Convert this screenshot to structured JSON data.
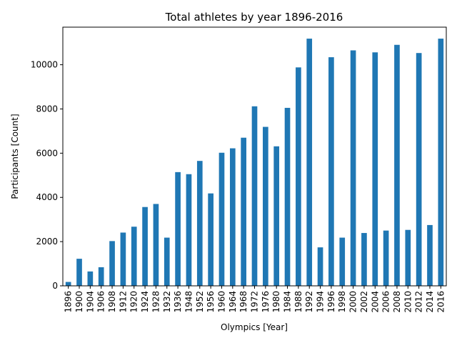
{
  "chart_data": {
    "type": "bar",
    "title": "Total athletes by year 1896-2016",
    "xlabel": "Olympics [Year]",
    "ylabel": "Participants [Count]",
    "categories": [
      "1896",
      "1900",
      "1904",
      "1906",
      "1908",
      "1912",
      "1920",
      "1924",
      "1928",
      "1932",
      "1936",
      "1948",
      "1952",
      "1956",
      "1960",
      "1964",
      "1968",
      "1972",
      "1976",
      "1980",
      "1984",
      "1988",
      "1992",
      "1994",
      "1996",
      "1998",
      "2000",
      "2002",
      "2004",
      "2006",
      "2008",
      "2010",
      "2012",
      "2014",
      "2016"
    ],
    "values": [
      176,
      1224,
      650,
      841,
      2024,
      2409,
      2675,
      3565,
      3703,
      2180,
      5143,
      5050,
      5650,
      4180,
      6020,
      6220,
      6700,
      8120,
      7190,
      6310,
      8050,
      9880,
      11180,
      1740,
      10340,
      2180,
      10650,
      2390,
      10560,
      2500,
      10900,
      2530,
      10530,
      2750,
      11180
    ],
    "ylim": [
      0,
      11700
    ],
    "yticks": [
      0,
      2000,
      4000,
      6000,
      8000,
      10000
    ],
    "ytick_labels": [
      "0",
      "2000",
      "4000",
      "6000",
      "8000",
      "10000"
    ],
    "grid": false,
    "legend": "none",
    "bar_color": "#1f77b4"
  }
}
